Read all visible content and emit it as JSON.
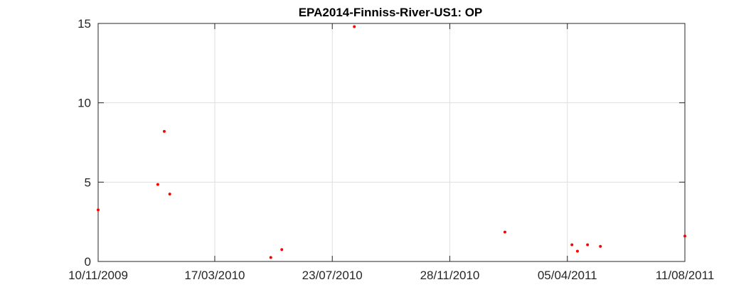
{
  "chart_data": {
    "type": "scatter",
    "title": "EPA2014-Finniss-River-US1: OP",
    "xlabel": "",
    "ylabel": "",
    "xlim": [
      "10/11/2009",
      "11/08/2011"
    ],
    "ylim": [
      0,
      15
    ],
    "x_ticks": [
      "10/11/2009",
      "17/03/2010",
      "23/07/2010",
      "28/11/2010",
      "05/04/2011",
      "11/08/2011"
    ],
    "y_ticks": [
      "0",
      "5",
      "10",
      "15"
    ],
    "grid": true,
    "marker_color": "#ff0000",
    "axis_color": "#262626",
    "grid_color": "#dfdfdf",
    "series": [
      {
        "points": [
          {
            "date": "10/11/2009",
            "y": 3.25
          },
          {
            "date": "14/01/2010",
            "y": 4.85
          },
          {
            "date": "21/01/2010",
            "y": 8.2
          },
          {
            "date": "27/01/2010",
            "y": 4.25
          },
          {
            "date": "17/05/2010",
            "y": 0.25
          },
          {
            "date": "29/05/2010",
            "y": 0.75
          },
          {
            "date": "16/08/2010",
            "y": 14.8
          },
          {
            "date": "27/01/2011",
            "y": 1.85
          },
          {
            "date": "10/04/2011",
            "y": 1.05
          },
          {
            "date": "16/04/2011",
            "y": 0.65
          },
          {
            "date": "27/04/2011",
            "y": 1.05
          },
          {
            "date": "11/05/2011",
            "y": 0.95
          },
          {
            "date": "11/08/2011",
            "y": 1.6
          }
        ]
      }
    ]
  }
}
